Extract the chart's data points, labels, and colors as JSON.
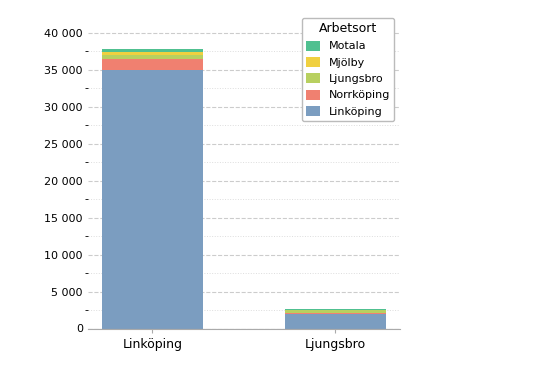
{
  "categories": [
    "Linköping",
    "Ljungsbro"
  ],
  "series": [
    {
      "label": "Linköping",
      "color": "#7b9dc0",
      "values": [
        35000,
        2000
      ]
    },
    {
      "label": "Norrköping",
      "color": "#f08070",
      "values": [
        1500,
        50
      ]
    },
    {
      "label": "Ljungsbro",
      "color": "#b8d060",
      "values": [
        500,
        480
      ]
    },
    {
      "label": "Mjölby",
      "color": "#f0d040",
      "values": [
        450,
        30
      ]
    },
    {
      "label": "Motala",
      "color": "#50c090",
      "values": [
        320,
        20
      ]
    }
  ],
  "legend_title": "Arbetsort",
  "ylim": [
    0,
    42000
  ],
  "major_yticks": [
    0,
    5000,
    10000,
    15000,
    20000,
    25000,
    30000,
    35000,
    40000
  ],
  "major_ytick_labels": [
    "0",
    "5 000",
    "10 000",
    "15 000",
    "20 000",
    "25 000",
    "30 000",
    "35 000",
    "40 000"
  ],
  "minor_yticks": [
    2500,
    7500,
    12500,
    17500,
    22500,
    27500,
    32500,
    37500
  ],
  "bar_width": 0.55,
  "background_color": "#ffffff",
  "major_grid_color": "#cccccc",
  "minor_grid_color": "#dddddd",
  "legend_order": [
    "Motala",
    "Mjölby",
    "Ljungsbro",
    "Norrköping",
    "Linköping"
  ]
}
